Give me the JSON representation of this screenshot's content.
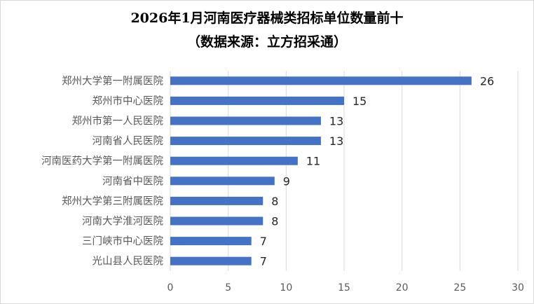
{
  "chart_data": {
    "type": "bar",
    "orientation": "horizontal",
    "title": "2026年1月河南医疗器械类招标单位数量前十",
    "subtitle": "（数据来源：立方招采通）",
    "categories": [
      "郑州大学第一附属医院",
      "郑州市中心医院",
      "郑州市第一人民医院",
      "河南省人民医院",
      "河南医药大学第一附属医院",
      "河南省中医院",
      "郑州大学第三附属医院",
      "河南大学淮河医院",
      "三门峡市中心医院",
      "光山县人民医院"
    ],
    "values": [
      26,
      15,
      13,
      13,
      11,
      9,
      8,
      8,
      7,
      7
    ],
    "xlim": [
      0,
      30
    ],
    "xticks": [
      0,
      5,
      10,
      15,
      20,
      25,
      30
    ],
    "grid": "vertical",
    "legend": "none",
    "bar_color": "#4472C4",
    "grid_color": "#d9d9d9"
  }
}
